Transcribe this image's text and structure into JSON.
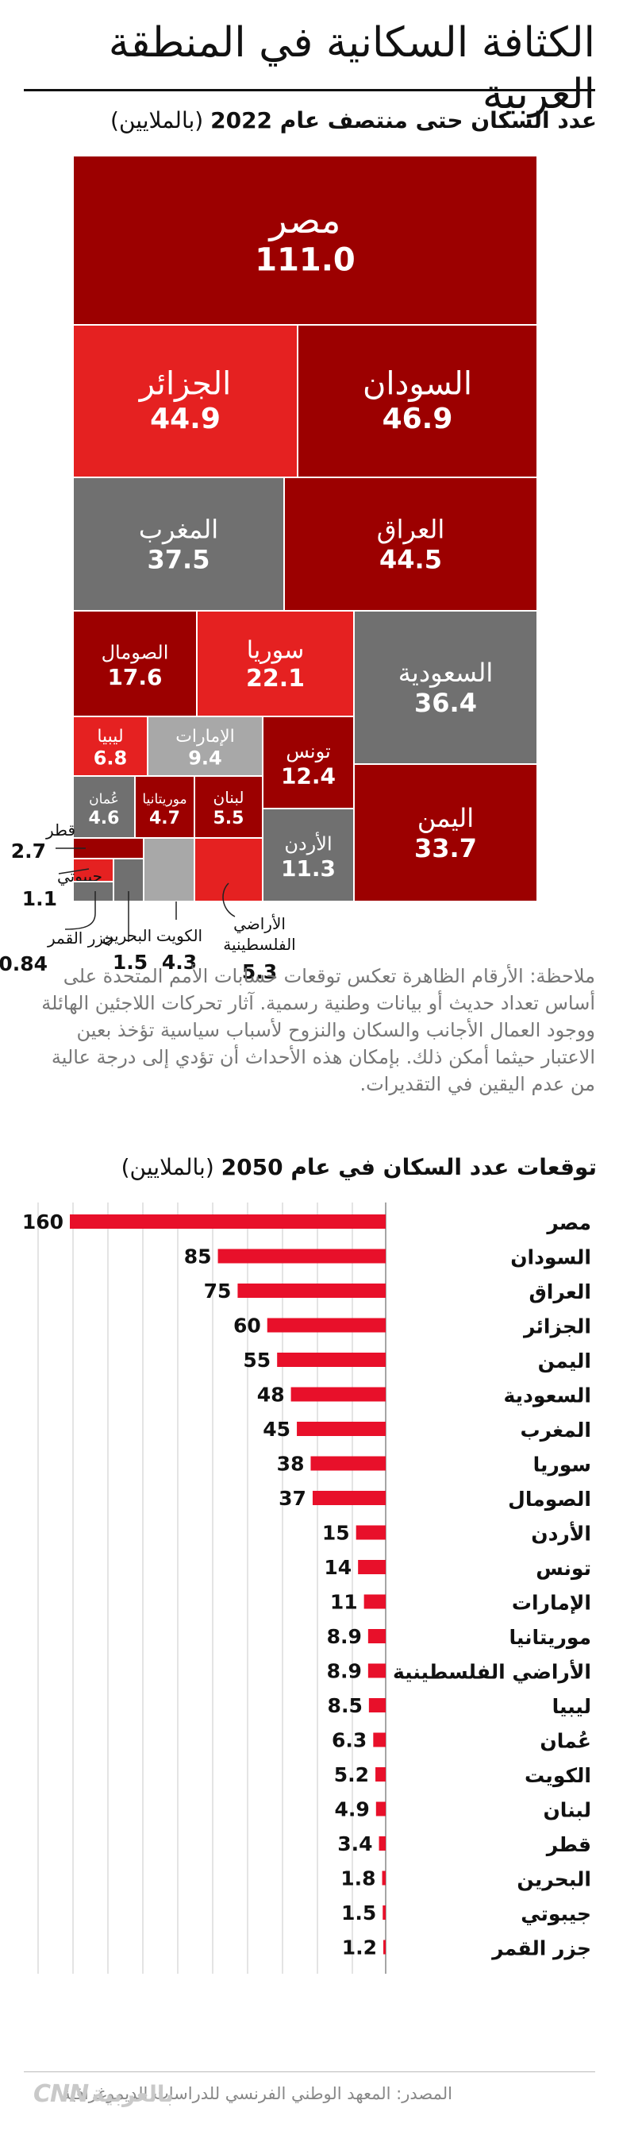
{
  "header": {
    "title": "الكثافة السكانية في المنطقة العربية"
  },
  "treemap_subtitle": {
    "bold": "عدد السكان حتى منتصف عام 2022",
    "unit": "(بالملايين)"
  },
  "note": "ملاحظة: الأرقام الظاهرة تعكس توقعات حسابات الأمم المتحدة على أساس تعداد حديث أو بيانات وطنية رسمية. آثار تحركات اللاجئين الهائلة ووجود العمال الأجانب والسكان والنزوح لأسباب سياسية تؤخذ بعين الاعتبار حيثما أمكن ذلك. بإمكان هذه الأحداث أن تؤدي إلى درجة عالية من عدم اليقين في التقديرات.",
  "bar_subtitle": {
    "bold": "توقعات عدد السكان في عام 2050",
    "unit": "(بالملايين)"
  },
  "footer": {
    "source": "المصدر: المعهد الوطني الفرنسي للدراسات الديموغرافية",
    "logo_cnn": "CNN",
    "logo_ar": "بالعربية"
  },
  "colors": {
    "dark_red": "#9c0000",
    "red": "#e52121",
    "gray": "#707070",
    "light_gray": "#a8a8a8",
    "bar_red": "#e8102a",
    "grid": "#c8c8c8"
  },
  "chart_data": [
    {
      "type": "treemap",
      "title": "الكثافة السكانية في المنطقة العربية",
      "subtitle": "عدد السكان حتى منتصف عام 2022 (بالملايين)",
      "items": [
        {
          "name": "مصر",
          "value": "111.0",
          "color": "dark_red"
        },
        {
          "name": "السودان",
          "value": "46.9",
          "color": "dark_red"
        },
        {
          "name": "الجزائر",
          "value": "44.9",
          "color": "red"
        },
        {
          "name": "العراق",
          "value": "44.5",
          "color": "dark_red"
        },
        {
          "name": "المغرب",
          "value": "37.5",
          "color": "gray"
        },
        {
          "name": "السعودية",
          "value": "36.4",
          "color": "gray"
        },
        {
          "name": "اليمن",
          "value": "33.7",
          "color": "dark_red"
        },
        {
          "name": "سوريا",
          "value": "22.1",
          "color": "red"
        },
        {
          "name": "الصومال",
          "value": "17.6",
          "color": "dark_red"
        },
        {
          "name": "تونس",
          "value": "12.4",
          "color": "dark_red"
        },
        {
          "name": "الأردن",
          "value": "11.3",
          "color": "gray"
        },
        {
          "name": "الإمارات",
          "value": "9.4",
          "color": "light_gray"
        },
        {
          "name": "ليبيا",
          "value": "6.8",
          "color": "red"
        },
        {
          "name": "لبنان",
          "value": "5.5",
          "color": "dark_red"
        },
        {
          "name": "الأراضي الفلسطينية",
          "value": "5.3",
          "color": "red"
        },
        {
          "name": "موريتانيا",
          "value": "4.7",
          "color": "dark_red"
        },
        {
          "name": "عُمان",
          "value": "4.6",
          "color": "gray"
        },
        {
          "name": "الكويت",
          "value": "4.3",
          "color": "light_gray"
        },
        {
          "name": "قطر",
          "value": "2.7",
          "color": "dark_red"
        },
        {
          "name": "البحرين",
          "value": "1.5",
          "color": "gray"
        },
        {
          "name": "جيبوتي",
          "value": "1.1",
          "color": "red"
        },
        {
          "name": "جزر القمر",
          "value": "0.84",
          "color": "gray"
        }
      ]
    },
    {
      "type": "bar",
      "orientation": "horizontal",
      "title": "توقعات عدد السكان في عام 2050 (بالملايين)",
      "categories": [
        "مصر",
        "السودان",
        "العراق",
        "الجزائر",
        "اليمن",
        "السعودية",
        "المغرب",
        "سوريا",
        "الصومال",
        "الأردن",
        "تونس",
        "الإمارات",
        "موريتانيا",
        "الأراضي الفلسطينية",
        "ليبيا",
        "عُمان",
        "الكويت",
        "لبنان",
        "قطر",
        "البحرين",
        "جيبوتي",
        "جزر القمر"
      ],
      "values": [
        160,
        85,
        75,
        60,
        55,
        48,
        45,
        38,
        37,
        15,
        14,
        11,
        8.9,
        8.9,
        8.5,
        6.3,
        5.2,
        4.9,
        3.4,
        1.8,
        1.5,
        1.2
      ],
      "value_labels": [
        "160",
        "85",
        "75",
        "60",
        "55",
        "48",
        "45",
        "38",
        "37",
        "15",
        "14",
        "11",
        "8.9",
        "8.9",
        "8.5",
        "6.3",
        "5.2",
        "4.9",
        "3.4",
        "1.8",
        "1.5",
        "1.2"
      ],
      "xlim": [
        0,
        160
      ],
      "grid": true
    }
  ]
}
